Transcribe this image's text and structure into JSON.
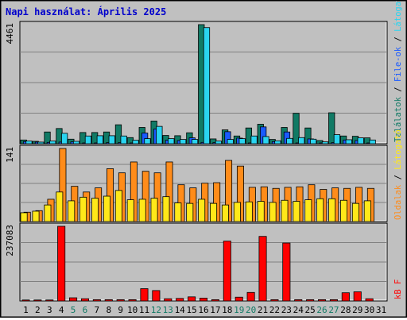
{
  "chart_data": {
    "type": "bar",
    "title": "Napi használat: Április 2025",
    "colors": {
      "title": "#0000cc",
      "background": "#c0c0c0",
      "plot_bg": "#c0c0c0",
      "grid": "#808080",
      "hits": "#117a65",
      "files": "#1a5aff",
      "pages": "#2ad4f0",
      "visits": "#ff8c1a",
      "sites": "#ffe819",
      "kbytes": "#ff0000",
      "weekend_label": "#117a65"
    },
    "days": [
      "1",
      "2",
      "3",
      "4",
      "5",
      "6",
      "7",
      "8",
      "9",
      "10",
      "11",
      "12",
      "13",
      "14",
      "15",
      "16",
      "17",
      "18",
      "19",
      "20",
      "21",
      "22",
      "23",
      "24",
      "25",
      "26",
      "27",
      "28",
      "29",
      "30",
      "31"
    ],
    "weekend_days": [
      "5",
      "6",
      "12",
      "13",
      "19",
      "20",
      "26",
      "27"
    ],
    "panels": [
      {
        "id": "hits_panel",
        "max_label": "4461",
        "ymax": 4461,
        "legend": [
          {
            "key": "hits",
            "text": "Találatok"
          },
          {
            "key": "files",
            "text": "File-ok"
          },
          {
            "key": "pages",
            "text": "Látogatott"
          }
        ],
        "series": [
          {
            "key": "hits",
            "values": [
              140,
              90,
              440,
              570,
              170,
              420,
              420,
              440,
              710,
              230,
              610,
              850,
              310,
              300,
              410,
              4461,
              180,
              520,
              290,
              590,
              730,
              160,
              610,
              1140,
              590,
              120,
              1160,
              290,
              280,
              220,
              0
            ]
          },
          {
            "key": "files",
            "values": [
              80,
              60,
              50,
              60,
              70,
              20,
              30,
              40,
              40,
              30,
              400,
              550,
              130,
              120,
              220,
              50,
              40,
              450,
              210,
              30,
              630,
              80,
              440,
              20,
              180,
              20,
              40,
              140,
              120,
              20,
              0
            ]
          },
          {
            "key": "pages",
            "values": [
              100,
              60,
              100,
              390,
              90,
              290,
              300,
              300,
              290,
              130,
              190,
              650,
              190,
              160,
              160,
              4350,
              100,
              160,
              190,
              290,
              270,
              110,
              200,
              230,
              170,
              70,
              340,
              150,
              220,
              140,
              0
            ]
          }
        ]
      },
      {
        "id": "visits_panel",
        "max_label": "141",
        "ymax": 141,
        "legend": [
          {
            "key": "visits",
            "text": "Oldalak"
          },
          {
            "key": "sites",
            "text": "Látogató"
          }
        ],
        "series": [
          {
            "key": "visits",
            "values": [
              18,
              21,
              43,
              141,
              68,
              57,
              65,
              102,
              94,
              115,
              97,
              94,
              115,
              71,
              65,
              74,
              75,
              118,
              107,
              66,
              67,
              64,
              66,
              67,
              71,
              62,
              65,
              64,
              66,
              64,
              0
            ]
          },
          {
            "key": "sites",
            "values": [
              17,
              20,
              32,
              57,
              40,
              47,
              45,
              49,
              60,
              42,
              43,
              45,
              48,
              36,
              35,
              43,
              35,
              32,
              37,
              38,
              39,
              37,
              41,
              39,
              42,
              44,
              44,
              41,
              35,
              40,
              0
            ]
          }
        ]
      },
      {
        "id": "kb_panel",
        "max_label": "237083",
        "ymax": 237083,
        "legend": [
          {
            "key": "kbytes",
            "text": "kB F"
          }
        ],
        "series": [
          {
            "key": "kbytes",
            "values": [
              3000,
              3000,
              3000,
              237083,
              10000,
              7000,
              4000,
              4000,
              4000,
              4000,
              39000,
              33000,
              7000,
              8000,
              13000,
              9000,
              4000,
              190000,
              12000,
              27000,
              205000,
              4000,
              184000,
              4000,
              4000,
              4000,
              4000,
              26000,
              29000,
              7000,
              0
            ]
          }
        ]
      }
    ]
  }
}
